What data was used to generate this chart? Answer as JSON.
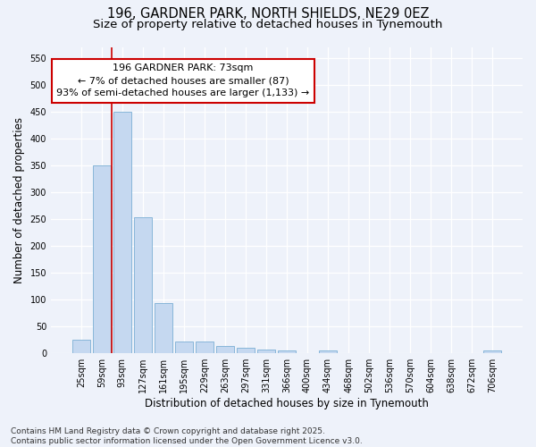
{
  "title_line1": "196, GARDNER PARK, NORTH SHIELDS, NE29 0EZ",
  "title_line2": "Size of property relative to detached houses in Tynemouth",
  "xlabel": "Distribution of detached houses by size in Tynemouth",
  "ylabel": "Number of detached properties",
  "categories": [
    "25sqm",
    "59sqm",
    "93sqm",
    "127sqm",
    "161sqm",
    "195sqm",
    "229sqm",
    "263sqm",
    "297sqm",
    "331sqm",
    "366sqm",
    "400sqm",
    "434sqm",
    "468sqm",
    "502sqm",
    "536sqm",
    "570sqm",
    "604sqm",
    "638sqm",
    "672sqm",
    "706sqm"
  ],
  "values": [
    25,
    350,
    450,
    253,
    92,
    22,
    22,
    13,
    10,
    7,
    5,
    0,
    4,
    0,
    0,
    0,
    0,
    0,
    0,
    0,
    4
  ],
  "bar_color": "#c5d8f0",
  "bar_edge_color": "#7bafd4",
  "vline_x": 1.5,
  "vline_color": "#cc0000",
  "annotation_line1": "196 GARDNER PARK: 73sqm",
  "annotation_line2": "← 7% of detached houses are smaller (87)",
  "annotation_line3": "93% of semi-detached houses are larger (1,133) →",
  "annotation_box_color": "#ffffff",
  "annotation_box_edge": "#cc0000",
  "ylim": [
    0,
    570
  ],
  "yticks": [
    0,
    50,
    100,
    150,
    200,
    250,
    300,
    350,
    400,
    450,
    500,
    550
  ],
  "footer": "Contains HM Land Registry data © Crown copyright and database right 2025.\nContains public sector information licensed under the Open Government Licence v3.0.",
  "bg_color": "#eef2fa",
  "grid_color": "#ffffff",
  "title_fontsize": 10.5,
  "subtitle_fontsize": 9.5,
  "axis_label_fontsize": 8.5,
  "tick_fontsize": 7,
  "footer_fontsize": 6.5,
  "annotation_fontsize": 8
}
